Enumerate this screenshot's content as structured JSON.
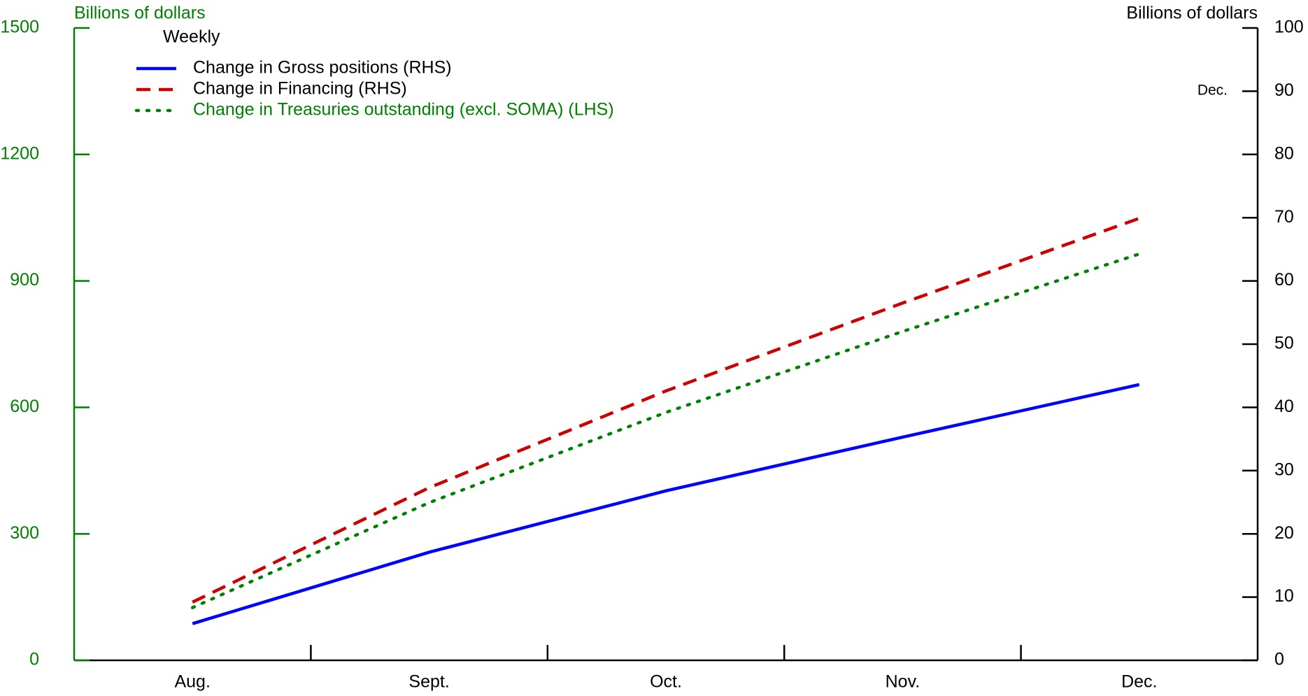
{
  "chart_data": {
    "type": "line",
    "subtitle": "Weekly",
    "y_label": "Billions of dollars",
    "y2_label": "Billions of dollars",
    "annotation": "Dec.",
    "categories": [
      "Aug.",
      "Sept.",
      "Oct.",
      "Nov.",
      "Dec."
    ],
    "ylim": [
      0,
      1500
    ],
    "yticks": [
      0,
      300,
      600,
      900,
      1200,
      1500
    ],
    "y2lim": [
      0,
      100
    ],
    "y2ticks": [
      0,
      10,
      20,
      30,
      40,
      50,
      60,
      70,
      80,
      90,
      100
    ],
    "grid": false,
    "series": [
      {
        "name": "Change in Gross positions (RHS)",
        "color": "#0000ff",
        "style": "solid",
        "axis": "y2",
        "values": [
          5.8,
          17.1,
          26.8,
          35.3,
          43.6
        ]
      },
      {
        "name": "Change in Financing (RHS)",
        "color": "#cc0000",
        "style": "dashed",
        "axis": "y2",
        "values": [
          9.2,
          27.3,
          42.6,
          56.5,
          69.9
        ]
      },
      {
        "name": "Change in Treasuries outstanding (excl. SOMA) (LHS)",
        "color": "#008000",
        "style": "dotted",
        "axis": "y",
        "values": [
          125,
          374,
          588,
          780,
          964
        ]
      }
    ]
  }
}
